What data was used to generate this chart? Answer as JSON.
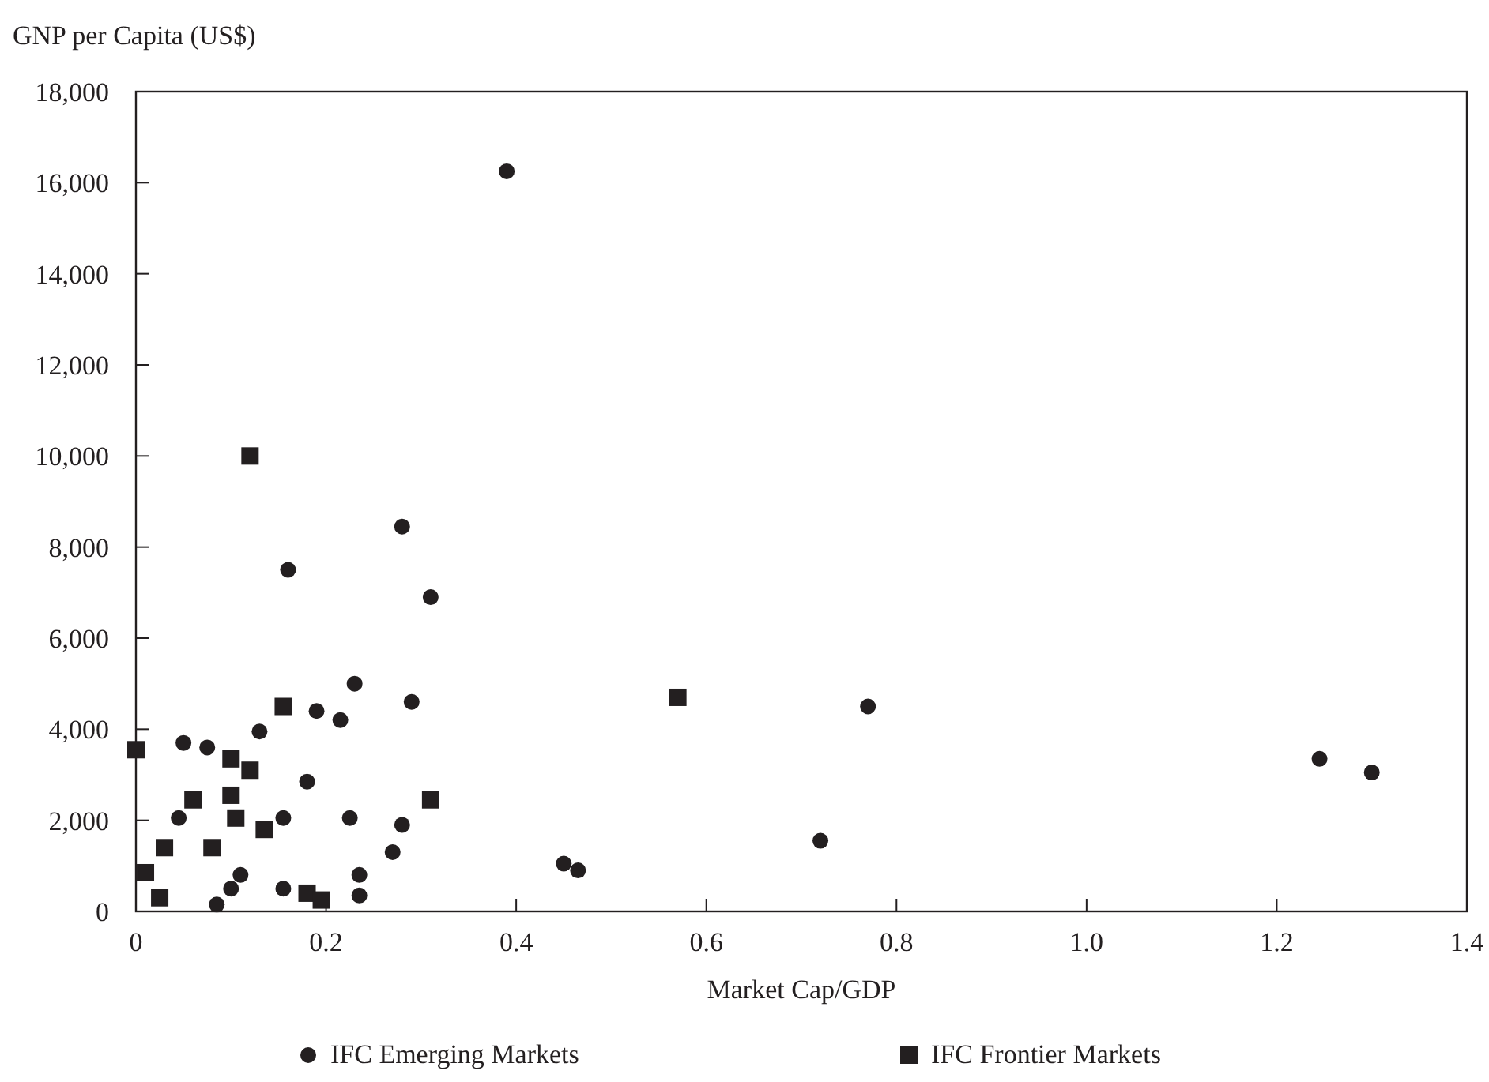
{
  "chart_data": {
    "type": "scatter",
    "ylabel": "GNP per Capita (US$)",
    "xlabel": "Market Cap/GDP",
    "xlim": [
      0,
      1.4
    ],
    "xticks": [
      {
        "value": 0,
        "label": "0"
      },
      {
        "value": 0.2,
        "label": "0.2"
      },
      {
        "value": 0.4,
        "label": "0.4"
      },
      {
        "value": 0.6,
        "label": "0.6"
      },
      {
        "value": 0.8,
        "label": "0.8"
      },
      {
        "value": 1,
        "label": "1.0"
      },
      {
        "value": 1.2,
        "label": "1.2"
      },
      {
        "value": 1.4,
        "label": "1.4"
      }
    ],
    "ylim": [
      0,
      18000
    ],
    "yticks": [
      {
        "value": 0,
        "label": "0"
      },
      {
        "value": 2000,
        "label": "2,000"
      },
      {
        "value": 4000,
        "label": "4,000"
      },
      {
        "value": 6000,
        "label": "6,000"
      },
      {
        "value": 8000,
        "label": "8,000"
      },
      {
        "value": 10000,
        "label": "10,000"
      },
      {
        "value": 12000,
        "label": "12,000"
      },
      {
        "value": 14000,
        "label": "14,000"
      },
      {
        "value": 16000,
        "label": "16,000"
      },
      {
        "value": 18000,
        "label": "18,000"
      }
    ],
    "grid": false,
    "legend": "bottom",
    "series": [
      {
        "name": "IFC Emerging Markets",
        "color": "#231f20",
        "marker": "circle",
        "x": [
          0.39,
          0.16,
          0.28,
          0.31,
          0.23,
          0.29,
          0.19,
          0.215,
          0.13,
          0.05,
          0.075,
          0.18,
          0.045,
          0.155,
          0.225,
          0.28,
          0.27,
          0.11,
          0.235,
          0.1,
          0.155,
          0.235,
          0.085,
          0.45,
          0.465,
          0.72,
          0.77,
          1.245,
          1.3
        ],
        "values": [
          16250,
          7500,
          8450,
          6900,
          5000,
          4600,
          4400,
          4200,
          3950,
          3700,
          3600,
          2850,
          2050,
          2050,
          2050,
          1900,
          1300,
          800,
          800,
          500,
          500,
          350,
          150,
          1050,
          900,
          1550,
          4500,
          3350,
          3050
        ]
      },
      {
        "name": "IFC Frontier Markets",
        "color": "#231f20",
        "marker": "square",
        "x": [
          0.12,
          0,
          0.155,
          0.1,
          0.12,
          0.06,
          0.1,
          0.105,
          0.31,
          0.135,
          0.03,
          0.08,
          0.01,
          0.025,
          0.18,
          0.195,
          0.57
        ],
        "values": [
          10000,
          3550,
          4500,
          3350,
          3100,
          2450,
          2550,
          2050,
          2450,
          1800,
          1400,
          1400,
          850,
          300,
          400,
          250,
          4700
        ]
      }
    ]
  }
}
